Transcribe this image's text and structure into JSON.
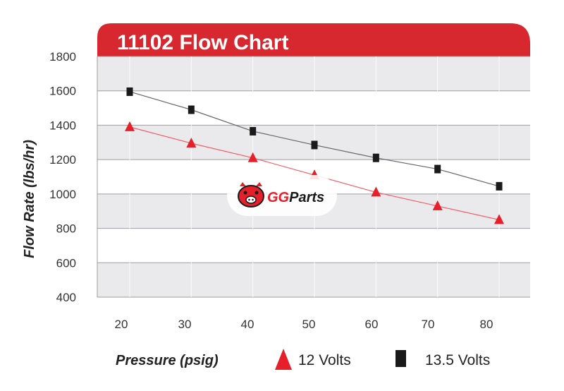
{
  "chart_data": {
    "type": "line",
    "title": "11102 Flow Chart",
    "xlabel": "Pressure (psig)",
    "ylabel": "Flow Rate (lbs/hr)",
    "x": [
      20,
      30,
      40,
      50,
      60,
      70,
      80
    ],
    "x_ticks": [
      "20",
      "30",
      "40",
      "50",
      "60",
      "70",
      "80"
    ],
    "y_ticks": [
      "400",
      "600",
      "800",
      "1000",
      "1200",
      "1400",
      "1600",
      "1800"
    ],
    "ylim": [
      400,
      1800
    ],
    "grid": "horizontal and vertical",
    "legend_position": "bottom",
    "series": [
      {
        "name": "12 Volts",
        "marker": "triangle",
        "color": "#e5202a",
        "values": [
          1390,
          1295,
          1210,
          1110,
          1010,
          930,
          850
        ]
      },
      {
        "name": "13.5 Volts",
        "marker": "square",
        "color": "#1a1a1a",
        "values": [
          1595,
          1490,
          1365,
          1285,
          1210,
          1145,
          1045
        ]
      }
    ]
  },
  "colors": {
    "header": "#d7282f",
    "band_gray": "#eaeaec",
    "grid": "#9e9ea2"
  },
  "watermark": {
    "text": "GGParts",
    "icon": "pig-face-icon"
  }
}
